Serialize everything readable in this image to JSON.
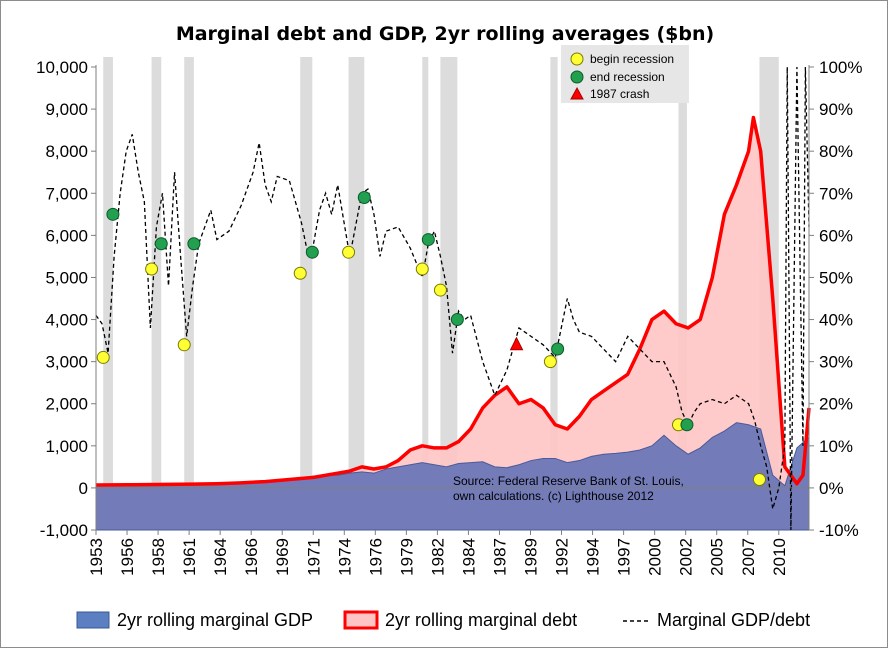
{
  "chart_data": {
    "type": "area",
    "title": "Marginal debt and GDP, 2yr rolling averages ($bn)",
    "xlabel": "",
    "ylabel": "",
    "x_range": [
      1953,
      2012
    ],
    "ylim_left": [
      -1000,
      10000
    ],
    "ylim_right": [
      -10,
      100
    ],
    "x_tick_labels": [
      "1953",
      "1956",
      "1958",
      "1961",
      "1964",
      "1966",
      "1969",
      "1971",
      "1974",
      "1976",
      "1979",
      "1982",
      "1984",
      "1987",
      "1989",
      "1992",
      "1994",
      "1997",
      "2000",
      "2002",
      "2005",
      "2007",
      "2010"
    ],
    "y_tick_labels_left": [
      "10,000",
      "9,000",
      "8,000",
      "7,000",
      "6,000",
      "5,000",
      "4,000",
      "3,000",
      "2,000",
      "1,000",
      "0",
      "-1,000"
    ],
    "y_tick_labels_right": [
      "100%",
      "90%",
      "80%",
      "70%",
      "60%",
      "50%",
      "40%",
      "30%",
      "20%",
      "10%",
      "0%",
      "-10%"
    ],
    "grid": false,
    "legend_position": "bottom",
    "series": [
      {
        "name": "2yr rolling marginal GDP",
        "axis": "left",
        "style": "area",
        "color": "#5b6eb5",
        "x": [
          1953,
          1956,
          1958,
          1961,
          1963,
          1965,
          1967,
          1969,
          1971,
          1972,
          1973,
          1974,
          1975,
          1976,
          1977,
          1978,
          1979,
          1980,
          1981,
          1982,
          1983,
          1984,
          1985,
          1986,
          1987,
          1988,
          1989,
          1990,
          1991,
          1992,
          1993,
          1994,
          1995,
          1996,
          1997,
          1998,
          1999,
          2000,
          2001,
          2002,
          2003,
          2004,
          2005,
          2006,
          2007,
          2008,
          2009,
          2010,
          2011,
          2012
        ],
        "values": [
          70,
          70,
          75,
          80,
          100,
          120,
          150,
          200,
          280,
          300,
          300,
          350,
          380,
          350,
          450,
          500,
          550,
          600,
          550,
          500,
          580,
          600,
          620,
          500,
          480,
          550,
          650,
          700,
          700,
          600,
          650,
          750,
          800,
          820,
          850,
          900,
          1000,
          1250,
          1000,
          800,
          950,
          1200,
          1350,
          1550,
          1500,
          1400,
          300,
          50,
          950,
          1200
        ]
      },
      {
        "name": "2yr rolling marginal debt",
        "axis": "left",
        "style": "area",
        "color": "#ff0000",
        "x": [
          1953,
          1956,
          1958,
          1961,
          1963,
          1965,
          1967,
          1969,
          1971,
          1973,
          1974,
          1975,
          1976,
          1977,
          1978,
          1979,
          1980,
          1981,
          1982,
          1983,
          1984,
          1985,
          1986,
          1987,
          1988,
          1989,
          1990,
          1991,
          1992,
          1993,
          1994,
          1995,
          1996,
          1997,
          1998,
          1999,
          2000,
          2001,
          2002,
          2003,
          2004,
          2005,
          2006,
          2007,
          2007.4,
          2008,
          2009,
          2010,
          2011,
          2011.5,
          2012
        ],
        "values": [
          70,
          75,
          80,
          90,
          100,
          120,
          150,
          200,
          250,
          350,
          400,
          500,
          450,
          500,
          650,
          900,
          1000,
          950,
          950,
          1100,
          1400,
          1900,
          2200,
          2400,
          2000,
          2100,
          1900,
          1500,
          1400,
          1700,
          2100,
          2300,
          2500,
          2700,
          3300,
          4000,
          4200,
          3900,
          3800,
          4000,
          5000,
          6500,
          7200,
          8000,
          8800,
          8000,
          4500,
          500,
          100,
          300,
          1900
        ]
      },
      {
        "name": "Marginal GDP/debt",
        "axis": "right",
        "style": "dashed-line",
        "color": "#000000",
        "x": [
          1953,
          1953.5,
          1954,
          1954.5,
          1955,
          1955.5,
          1956,
          1956.5,
          1957,
          1957.5,
          1958,
          1958.5,
          1959,
          1959.5,
          1960,
          1960.5,
          1961,
          1961.5,
          1962,
          1962.5,
          1963,
          1964,
          1965,
          1966,
          1966.5,
          1967,
          1967.5,
          1968,
          1969,
          1970,
          1970.5,
          1971,
          1971.5,
          1972,
          1972.5,
          1973,
          1974,
          1975,
          1975.5,
          1976,
          1976.5,
          1977,
          1978,
          1979,
          1980,
          1980.5,
          1981,
          1981.5,
          1982,
          1982.5,
          1983,
          1983.5,
          1984,
          1985,
          1986,
          1986.5,
          1987,
          1987.5,
          1988,
          1989,
          1990,
          1991,
          1991.5,
          1992,
          1992.5,
          1993,
          1994,
          1995,
          1996,
          1997,
          1998,
          1999,
          2000,
          2001,
          2001.5,
          2002,
          2002.5,
          2003,
          2004,
          2005,
          2006,
          2007,
          2007.5,
          2008,
          2008.5,
          2009,
          2009.5,
          2010,
          2010.2,
          2010.5,
          2011,
          2011.5,
          2011.7,
          2012
        ],
        "values": [
          41,
          39,
          32,
          55,
          70,
          80,
          84,
          75,
          68,
          38,
          62,
          70,
          48,
          75,
          55,
          36,
          48,
          58,
          62,
          66,
          59,
          61,
          67,
          75,
          82,
          72,
          68,
          74,
          73,
          63,
          56,
          58,
          66,
          70,
          65,
          72,
          55,
          70,
          71,
          65,
          55,
          61,
          62,
          57,
          50,
          58,
          61,
          55,
          48,
          32,
          42,
          40,
          41,
          30,
          22,
          25,
          28,
          33,
          38,
          36,
          34,
          31,
          38,
          45,
          40,
          37,
          36,
          33,
          30,
          36,
          33,
          30,
          30,
          24,
          18,
          15,
          18,
          20,
          21,
          20,
          22,
          20,
          16,
          10,
          5,
          -5,
          0,
          10,
          100,
          -10,
          100,
          10,
          100,
          62
        ]
      }
    ],
    "recession_bands": [
      [
        1953.6,
        1954.4
      ],
      [
        1957.6,
        1958.4
      ],
      [
        1960.3,
        1961.1
      ],
      [
        1969.9,
        1970.9
      ],
      [
        1973.9,
        1975.2
      ],
      [
        1980.0,
        1980.5
      ],
      [
        1981.5,
        1982.9
      ],
      [
        1990.6,
        1991.2
      ],
      [
        2001.2,
        2001.9
      ],
      [
        2007.9,
        2009.5
      ]
    ],
    "markers": {
      "begin_recession": [
        [
          1953.6,
          31
        ],
        [
          1957.6,
          52
        ],
        [
          1960.3,
          34
        ],
        [
          1969.9,
          51
        ],
        [
          1973.9,
          56
        ],
        [
          1980.0,
          52
        ],
        [
          1981.5,
          47
        ],
        [
          1990.6,
          30
        ],
        [
          2001.2,
          15
        ],
        [
          2007.9,
          2
        ]
      ],
      "end_recession": [
        [
          1954.4,
          65
        ],
        [
          1958.4,
          58
        ],
        [
          1961.1,
          58
        ],
        [
          1970.9,
          56
        ],
        [
          1975.2,
          69
        ],
        [
          1980.5,
          59
        ],
        [
          1982.9,
          40
        ],
        [
          1991.2,
          33
        ],
        [
          2001.9,
          15
        ]
      ],
      "crash_1987": [
        [
          1987.8,
          34
        ]
      ]
    },
    "marker_legend": [
      "begin recession",
      "end recession",
      "1987 crash"
    ],
    "annotation": [
      "Source: Federal Reserve Bank of St. Louis,",
      "own calculations. (c) Lighthouse 2012"
    ]
  }
}
